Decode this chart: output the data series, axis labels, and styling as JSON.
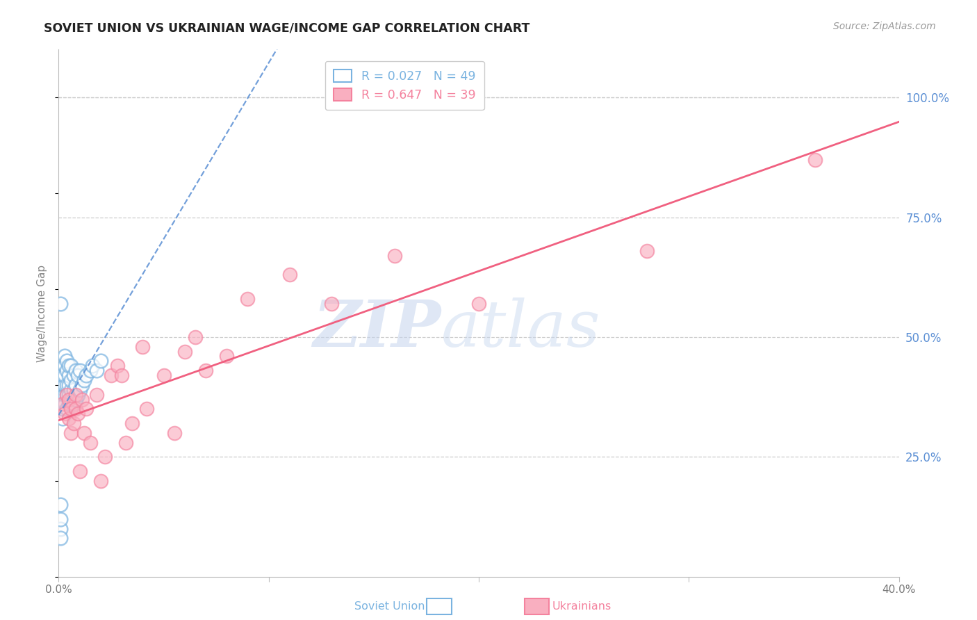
{
  "title": "SOVIET UNION VS UKRAINIAN WAGE/INCOME GAP CORRELATION CHART",
  "source": "Source: ZipAtlas.com",
  "ylabel": "Wage/Income Gap",
  "xlim": [
    0.0,
    0.4
  ],
  "ylim": [
    0.0,
    1.1
  ],
  "yticks_right": [
    0.25,
    0.5,
    0.75,
    1.0
  ],
  "ytick_labels_right": [
    "25.0%",
    "50.0%",
    "75.0%",
    "100.0%"
  ],
  "xticks": [
    0.0,
    0.1,
    0.2,
    0.3,
    0.4
  ],
  "xtick_labels": [
    "0.0%",
    "",
    "",
    "",
    "40.0%"
  ],
  "axis_color": "#5b8fd4",
  "grid_color": "#cccccc",
  "watermark": "ZIPAtlas",
  "watermark_color": "#c8d8f0",
  "background_color": "#ffffff",
  "soviet_color": "#7ab3e0",
  "soviet_fill": "#aacfee",
  "ukrainian_color": "#f4829e",
  "ukrainian_fill": "#f9afc0",
  "soviet_trend_color": "#5b8fd4",
  "ukrainian_trend_color": "#f06080",
  "soviet_R": 0.027,
  "ukrainian_R": 0.647,
  "soviet_N": 49,
  "ukrainian_N": 39,
  "soviet_x": [
    0.001,
    0.001,
    0.001,
    0.001,
    0.002,
    0.002,
    0.002,
    0.002,
    0.002,
    0.002,
    0.002,
    0.003,
    0.003,
    0.003,
    0.003,
    0.003,
    0.003,
    0.004,
    0.004,
    0.004,
    0.004,
    0.004,
    0.005,
    0.005,
    0.005,
    0.005,
    0.005,
    0.006,
    0.006,
    0.006,
    0.006,
    0.007,
    0.007,
    0.007,
    0.008,
    0.008,
    0.008,
    0.009,
    0.009,
    0.01,
    0.01,
    0.011,
    0.012,
    0.013,
    0.015,
    0.016,
    0.018,
    0.02,
    0.001
  ],
  "soviet_y": [
    0.1,
    0.12,
    0.15,
    0.08,
    0.36,
    0.38,
    0.4,
    0.42,
    0.33,
    0.35,
    0.37,
    0.36,
    0.38,
    0.4,
    0.42,
    0.44,
    0.46,
    0.35,
    0.38,
    0.4,
    0.43,
    0.45,
    0.36,
    0.38,
    0.4,
    0.42,
    0.44,
    0.37,
    0.39,
    0.41,
    0.44,
    0.36,
    0.39,
    0.42,
    0.37,
    0.4,
    0.43,
    0.38,
    0.42,
    0.39,
    0.43,
    0.4,
    0.41,
    0.42,
    0.43,
    0.44,
    0.43,
    0.45,
    0.57
  ],
  "ukrainian_x": [
    0.002,
    0.003,
    0.004,
    0.005,
    0.005,
    0.006,
    0.006,
    0.007,
    0.008,
    0.008,
    0.009,
    0.01,
    0.011,
    0.012,
    0.013,
    0.015,
    0.018,
    0.02,
    0.022,
    0.025,
    0.028,
    0.03,
    0.032,
    0.035,
    0.04,
    0.042,
    0.05,
    0.055,
    0.06,
    0.065,
    0.07,
    0.08,
    0.09,
    0.11,
    0.13,
    0.16,
    0.2,
    0.28,
    0.36
  ],
  "ukrainian_y": [
    0.36,
    0.34,
    0.38,
    0.33,
    0.37,
    0.3,
    0.35,
    0.32,
    0.38,
    0.35,
    0.34,
    0.22,
    0.37,
    0.3,
    0.35,
    0.28,
    0.38,
    0.2,
    0.25,
    0.42,
    0.44,
    0.42,
    0.28,
    0.32,
    0.48,
    0.35,
    0.42,
    0.3,
    0.47,
    0.5,
    0.43,
    0.46,
    0.58,
    0.63,
    0.57,
    0.67,
    0.57,
    0.68,
    0.87
  ]
}
